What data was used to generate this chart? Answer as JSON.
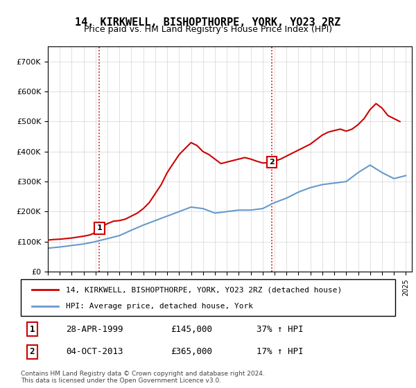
{
  "title": "14, KIRKWELL, BISHOPTHORPE, YORK, YO23 2RZ",
  "subtitle": "Price paid vs. HM Land Registry's House Price Index (HPI)",
  "legend_line1": "14, KIRKWELL, BISHOPTHORPE, YORK, YO23 2RZ (detached house)",
  "legend_line2": "HPI: Average price, detached house, York",
  "footnote": "Contains HM Land Registry data © Crown copyright and database right 2024.\nThis data is licensed under the Open Government Licence v3.0.",
  "transaction1_label": "1",
  "transaction1_date": "28-APR-1999",
  "transaction1_price": "£145,000",
  "transaction1_hpi": "37% ↑ HPI",
  "transaction2_label": "2",
  "transaction2_date": "04-OCT-2013",
  "transaction2_price": "£365,000",
  "transaction2_hpi": "17% ↑ HPI",
  "sale1_year": 1999.32,
  "sale1_price": 145000,
  "sale2_year": 2013.75,
  "sale2_price": 365000,
  "vline1_x": 1999.32,
  "vline2_x": 2013.75,
  "red_color": "#cc0000",
  "blue_color": "#6699cc",
  "ylim": [
    0,
    750000
  ],
  "xlim_left": 1995.0,
  "xlim_right": 2025.5,
  "hpi_years": [
    1995,
    1996,
    1997,
    1998,
    1999,
    2000,
    2001,
    2002,
    2003,
    2004,
    2005,
    2006,
    2007,
    2008,
    2009,
    2010,
    2011,
    2012,
    2013,
    2014,
    2015,
    2016,
    2017,
    2018,
    2019,
    2020,
    2021,
    2022,
    2023,
    2024,
    2025
  ],
  "hpi_values": [
    78000,
    82000,
    87000,
    92000,
    100000,
    110000,
    120000,
    138000,
    155000,
    170000,
    185000,
    200000,
    215000,
    210000,
    195000,
    200000,
    205000,
    205000,
    210000,
    230000,
    245000,
    265000,
    280000,
    290000,
    295000,
    300000,
    330000,
    355000,
    330000,
    310000,
    320000
  ],
  "price_years": [
    1995.0,
    1995.5,
    1996.0,
    1996.5,
    1997.0,
    1997.5,
    1998.0,
    1998.5,
    1999.0,
    1999.32,
    1999.5,
    2000.0,
    2000.5,
    2001.0,
    2001.5,
    2002.0,
    2002.5,
    2003.0,
    2003.5,
    2004.0,
    2004.5,
    2005.0,
    2005.5,
    2006.0,
    2006.5,
    2007.0,
    2007.5,
    2008.0,
    2008.5,
    2009.0,
    2009.5,
    2010.0,
    2010.5,
    2011.0,
    2011.5,
    2012.0,
    2012.5,
    2013.0,
    2013.5,
    2013.75,
    2014.0,
    2014.5,
    2015.0,
    2015.5,
    2016.0,
    2016.5,
    2017.0,
    2017.5,
    2018.0,
    2018.5,
    2019.0,
    2019.5,
    2020.0,
    2020.5,
    2021.0,
    2021.5,
    2022.0,
    2022.5,
    2023.0,
    2023.5,
    2024.0,
    2024.5
  ],
  "price_values": [
    105000,
    107000,
    108000,
    110000,
    112000,
    115000,
    118000,
    122000,
    130000,
    145000,
    150000,
    160000,
    168000,
    170000,
    175000,
    185000,
    195000,
    210000,
    230000,
    260000,
    290000,
    330000,
    360000,
    390000,
    410000,
    430000,
    420000,
    400000,
    390000,
    375000,
    360000,
    365000,
    370000,
    375000,
    380000,
    375000,
    368000,
    362000,
    363000,
    365000,
    368000,
    375000,
    385000,
    395000,
    405000,
    415000,
    425000,
    440000,
    455000,
    465000,
    470000,
    475000,
    468000,
    475000,
    490000,
    510000,
    540000,
    560000,
    545000,
    520000,
    510000,
    500000
  ]
}
